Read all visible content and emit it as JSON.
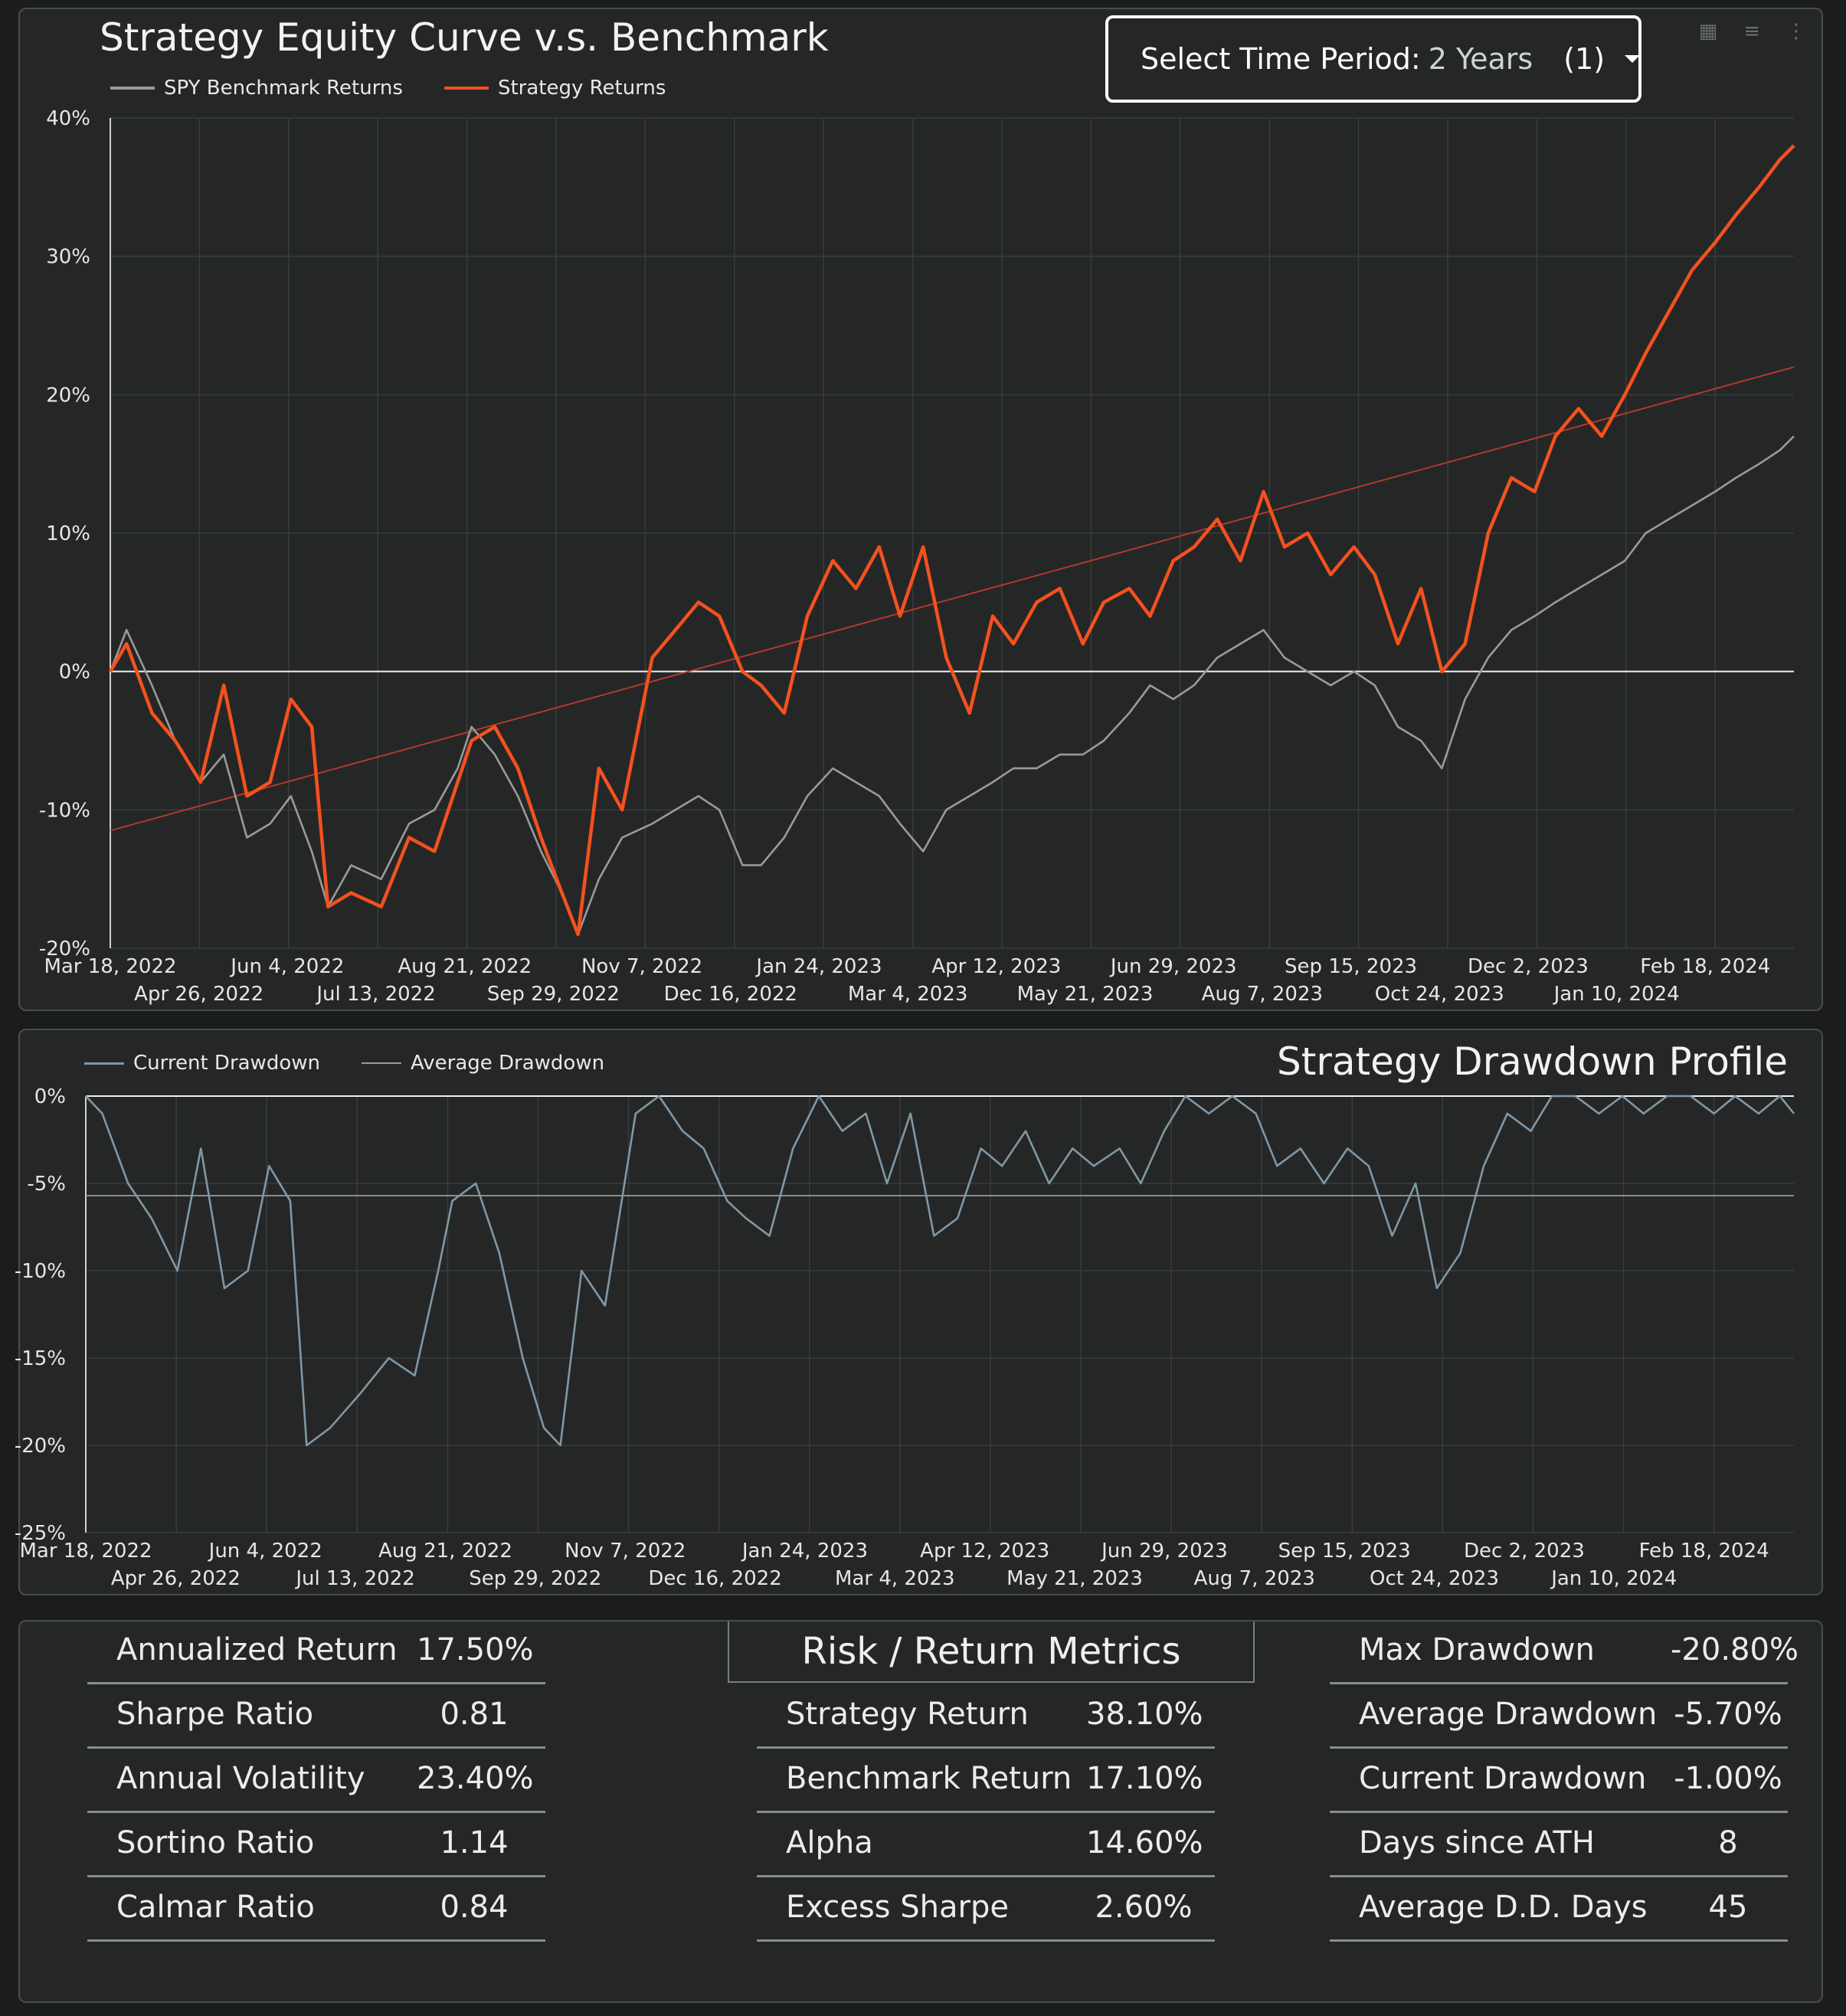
{
  "equity": {
    "title": "Strategy Equity Curve v.s. Benchmark",
    "legend": [
      {
        "label": "SPY Benchmark Returns",
        "color": "#9a9a9a"
      },
      {
        "label": "Strategy Returns",
        "color": "#f4511e"
      }
    ],
    "time_select": {
      "label": "Select Time Period:",
      "value": "2 Years",
      "count": "(1)"
    },
    "y_ticks": [
      "40%",
      "30%",
      "20%",
      "10%",
      "0%",
      "-10%",
      "-20%"
    ],
    "x_ticks_row1": [
      "Mar 18, 2022",
      "Jun 4, 2022",
      "Aug 21, 2022",
      "Nov 7, 2022",
      "Jan 24, 2023",
      "Apr 12, 2023",
      "Jun 29, 2023",
      "Sep 15, 2023",
      "Dec 2, 2023",
      "Feb 18, 2024"
    ],
    "x_ticks_row2": [
      "Apr 26, 2022",
      "Jul 13, 2022",
      "Sep 29, 2022",
      "Dec 16, 2022",
      "Mar 4, 2023",
      "May 21, 2023",
      "Aug 7, 2023",
      "Oct 24, 2023",
      "Jan 10, 2024"
    ]
  },
  "drawdown": {
    "title": "Strategy Drawdown Profile",
    "legend": [
      {
        "label": "Current Drawdown",
        "color": "#7f98a6"
      },
      {
        "label": "Average Drawdown",
        "color": "#9a9a9a"
      }
    ],
    "y_ticks": [
      "0%",
      "-5%",
      "-10%",
      "-15%",
      "-20%",
      "-25%"
    ],
    "x_ticks_row1": [
      "Mar 18, 2022",
      "Jun 4, 2022",
      "Aug 21, 2022",
      "Nov 7, 2022",
      "Jan 24, 2023",
      "Apr 12, 2023",
      "Jun 29, 2023",
      "Sep 15, 2023",
      "Dec 2, 2023",
      "Feb 18, 2024"
    ],
    "x_ticks_row2": [
      "Apr 26, 2022",
      "Jul 13, 2022",
      "Sep 29, 2022",
      "Dec 16, 2022",
      "Mar 4, 2023",
      "May 21, 2023",
      "Aug 7, 2023",
      "Oct 24, 2023",
      "Jan 10, 2024"
    ]
  },
  "chart_data": [
    {
      "type": "line",
      "title": "Strategy Equity Curve v.s. Benchmark",
      "ylim": [
        -20,
        40
      ],
      "y_unit": "%",
      "x_range": [
        "Mar 18, 2022",
        "Mar 2024"
      ],
      "series": [
        {
          "name": "Strategy Returns",
          "color": "#f4511e",
          "x": [
            "2022-03-18",
            "2022-03-25",
            "2022-04-05",
            "2022-04-15",
            "2022-04-26",
            "2022-05-06",
            "2022-05-16",
            "2022-05-26",
            "2022-06-04",
            "2022-06-13",
            "2022-06-20",
            "2022-06-30",
            "2022-07-13",
            "2022-07-25",
            "2022-08-05",
            "2022-08-15",
            "2022-08-21",
            "2022-08-31",
            "2022-09-10",
            "2022-09-20",
            "2022-09-29",
            "2022-10-06",
            "2022-10-15",
            "2022-10-25",
            "2022-11-07",
            "2022-11-17",
            "2022-11-27",
            "2022-12-06",
            "2022-12-16",
            "2022-12-24",
            "2023-01-03",
            "2023-01-13",
            "2023-01-24",
            "2023-02-03",
            "2023-02-13",
            "2023-02-22",
            "2023-03-04",
            "2023-03-14",
            "2023-03-24",
            "2023-04-03",
            "2023-04-12",
            "2023-04-22",
            "2023-05-02",
            "2023-05-12",
            "2023-05-21",
            "2023-06-01",
            "2023-06-10",
            "2023-06-20",
            "2023-06-29",
            "2023-07-09",
            "2023-07-19",
            "2023-07-29",
            "2023-08-07",
            "2023-08-17",
            "2023-08-27",
            "2023-09-06",
            "2023-09-15",
            "2023-09-25",
            "2023-10-05",
            "2023-10-14",
            "2023-10-24",
            "2023-11-03",
            "2023-11-13",
            "2023-11-23",
            "2023-12-02",
            "2023-12-12",
            "2023-12-22",
            "2024-01-01",
            "2024-01-10",
            "2024-01-20",
            "2024-01-30",
            "2024-02-09",
            "2024-02-18",
            "2024-02-28",
            "2024-03-08",
            "2024-03-14"
          ],
          "y": [
            0,
            2,
            -3,
            -5,
            -8,
            -1,
            -9,
            -8,
            -2,
            -4,
            -17,
            -16,
            -17,
            -12,
            -13,
            -8,
            -5,
            -4,
            -7,
            -12,
            -16,
            -19,
            -7,
            -10,
            1,
            3,
            5,
            4,
            0,
            -1,
            -3,
            4,
            8,
            6,
            9,
            4,
            9,
            1,
            -3,
            4,
            2,
            5,
            6,
            2,
            5,
            6,
            4,
            8,
            9,
            11,
            8,
            13,
            9,
            10,
            7,
            9,
            7,
            2,
            6,
            0,
            2,
            10,
            14,
            13,
            17,
            19,
            17,
            20,
            23,
            26,
            29,
            31,
            33,
            35,
            37,
            38
          ]
        },
        {
          "name": "SPY Benchmark Returns",
          "color": "#9a9a9a",
          "x": [
            "2022-03-18",
            "2022-03-25",
            "2022-04-05",
            "2022-04-15",
            "2022-04-26",
            "2022-05-06",
            "2022-05-16",
            "2022-05-26",
            "2022-06-04",
            "2022-06-13",
            "2022-06-20",
            "2022-06-30",
            "2022-07-13",
            "2022-07-25",
            "2022-08-05",
            "2022-08-15",
            "2022-08-21",
            "2022-08-31",
            "2022-09-10",
            "2022-09-20",
            "2022-09-29",
            "2022-10-06",
            "2022-10-15",
            "2022-10-25",
            "2022-11-07",
            "2022-11-17",
            "2022-11-27",
            "2022-12-06",
            "2022-12-16",
            "2022-12-24",
            "2023-01-03",
            "2023-01-13",
            "2023-01-24",
            "2023-02-03",
            "2023-02-13",
            "2023-02-22",
            "2023-03-04",
            "2023-03-14",
            "2023-03-24",
            "2023-04-03",
            "2023-04-12",
            "2023-04-22",
            "2023-05-02",
            "2023-05-12",
            "2023-05-21",
            "2023-06-01",
            "2023-06-10",
            "2023-06-20",
            "2023-06-29",
            "2023-07-09",
            "2023-07-19",
            "2023-07-29",
            "2023-08-07",
            "2023-08-17",
            "2023-08-27",
            "2023-09-06",
            "2023-09-15",
            "2023-09-25",
            "2023-10-05",
            "2023-10-14",
            "2023-10-24",
            "2023-11-03",
            "2023-11-13",
            "2023-11-23",
            "2023-12-02",
            "2023-12-12",
            "2023-12-22",
            "2024-01-01",
            "2024-01-10",
            "2024-01-20",
            "2024-01-30",
            "2024-02-09",
            "2024-02-18",
            "2024-02-28",
            "2024-03-08",
            "2024-03-14"
          ],
          "y": [
            0,
            3,
            -1,
            -5,
            -8,
            -6,
            -12,
            -11,
            -9,
            -13,
            -17,
            -14,
            -15,
            -11,
            -10,
            -7,
            -4,
            -6,
            -9,
            -13,
            -16,
            -19,
            -15,
            -12,
            -11,
            -10,
            -9,
            -10,
            -14,
            -14,
            -12,
            -9,
            -7,
            -8,
            -9,
            -11,
            -13,
            -10,
            -9,
            -8,
            -7,
            -7,
            -6,
            -6,
            -5,
            -3,
            -1,
            -2,
            -1,
            1,
            2,
            3,
            1,
            0,
            -1,
            0,
            -1,
            -4,
            -5,
            -7,
            -2,
            1,
            3,
            4,
            5,
            6,
            7,
            8,
            10,
            11,
            12,
            13,
            14,
            15,
            16,
            17
          ]
        },
        {
          "name": "",
          "color": "#c0392b",
          "x": [
            "2022-03-18",
            "2024-03-14"
          ],
          "y": [
            -11.5,
            22
          ]
        }
      ]
    },
    {
      "type": "line",
      "title": "Strategy Drawdown Profile",
      "ylim": [
        -25,
        0
      ],
      "y_unit": "%",
      "series": [
        {
          "name": "Current Drawdown",
          "color": "#7f98a6",
          "x": [
            "2022-03-18",
            "2022-03-25",
            "2022-04-05",
            "2022-04-15",
            "2022-04-26",
            "2022-05-06",
            "2022-05-16",
            "2022-05-26",
            "2022-06-04",
            "2022-06-13",
            "2022-06-20",
            "2022-06-30",
            "2022-07-13",
            "2022-07-25",
            "2022-08-05",
            "2022-08-15",
            "2022-08-21",
            "2022-08-31",
            "2022-09-10",
            "2022-09-20",
            "2022-09-29",
            "2022-10-06",
            "2022-10-15",
            "2022-10-25",
            "2022-11-07",
            "2022-11-17",
            "2022-11-27",
            "2022-12-06",
            "2022-12-16",
            "2022-12-24",
            "2023-01-03",
            "2023-01-13",
            "2023-01-24",
            "2023-02-03",
            "2023-02-13",
            "2023-02-22",
            "2023-03-04",
            "2023-03-14",
            "2023-03-24",
            "2023-04-03",
            "2023-04-12",
            "2023-04-22",
            "2023-05-02",
            "2023-05-12",
            "2023-05-21",
            "2023-06-01",
            "2023-06-10",
            "2023-06-20",
            "2023-06-29",
            "2023-07-09",
            "2023-07-19",
            "2023-07-29",
            "2023-08-07",
            "2023-08-17",
            "2023-08-27",
            "2023-09-06",
            "2023-09-15",
            "2023-09-25",
            "2023-10-05",
            "2023-10-14",
            "2023-10-24",
            "2023-11-03",
            "2023-11-13",
            "2023-11-23",
            "2023-12-02",
            "2023-12-12",
            "2023-12-22",
            "2024-01-01",
            "2024-01-10",
            "2024-01-20",
            "2024-01-30",
            "2024-02-09",
            "2024-02-18",
            "2024-02-28",
            "2024-03-08",
            "2024-03-14"
          ],
          "y": [
            0,
            -1,
            -5,
            -7,
            -10,
            -3,
            -11,
            -10,
            -4,
            -6,
            -20,
            -19,
            -17,
            -15,
            -16,
            -10,
            -6,
            -5,
            -9,
            -15,
            -19,
            -20,
            -10,
            -12,
            -1,
            0,
            -2,
            -3,
            -6,
            -7,
            -8,
            -3,
            0,
            -2,
            -1,
            -5,
            -1,
            -8,
            -7,
            -3,
            -4,
            -2,
            -5,
            -3,
            -4,
            -3,
            -5,
            -2,
            0,
            -1,
            0,
            -1,
            -4,
            -3,
            -5,
            -3,
            -4,
            -8,
            -5,
            -11,
            -9,
            -4,
            -1,
            -2,
            0,
            0,
            -1,
            0,
            -1,
            0,
            0,
            -1,
            0,
            -1,
            0,
            -1
          ]
        },
        {
          "name": "Average Drawdown",
          "color": "#9a9a9a",
          "x": [
            "2022-03-18",
            "2024-03-14"
          ],
          "y": [
            -5.7,
            -5.7
          ]
        }
      ]
    }
  ],
  "metrics": {
    "title": "Risk / Return Metrics",
    "left": [
      {
        "label": "Annualized Return",
        "value": "17.50%"
      },
      {
        "label": "Sharpe Ratio",
        "value": "0.81"
      },
      {
        "label": "Annual Volatility",
        "value": "23.40%"
      },
      {
        "label": "Sortino Ratio",
        "value": "1.14"
      },
      {
        "label": "Calmar Ratio",
        "value": "0.84"
      }
    ],
    "middle": [
      {
        "label": "Strategy Return",
        "value": "38.10%"
      },
      {
        "label": "Benchmark Return",
        "value": "17.10%"
      },
      {
        "label": "Alpha",
        "value": "14.60%"
      },
      {
        "label": "Excess Sharpe",
        "value": "2.60%"
      }
    ],
    "right": [
      {
        "label": "Max Drawdown",
        "value": "-20.80%"
      },
      {
        "label": "Average Drawdown",
        "value": "-5.70%"
      },
      {
        "label": "Current Drawdown",
        "value": "-1.00%"
      },
      {
        "label": "Days since ATH",
        "value": "8"
      },
      {
        "label": "Average D.D. Days",
        "value": "45"
      }
    ]
  }
}
